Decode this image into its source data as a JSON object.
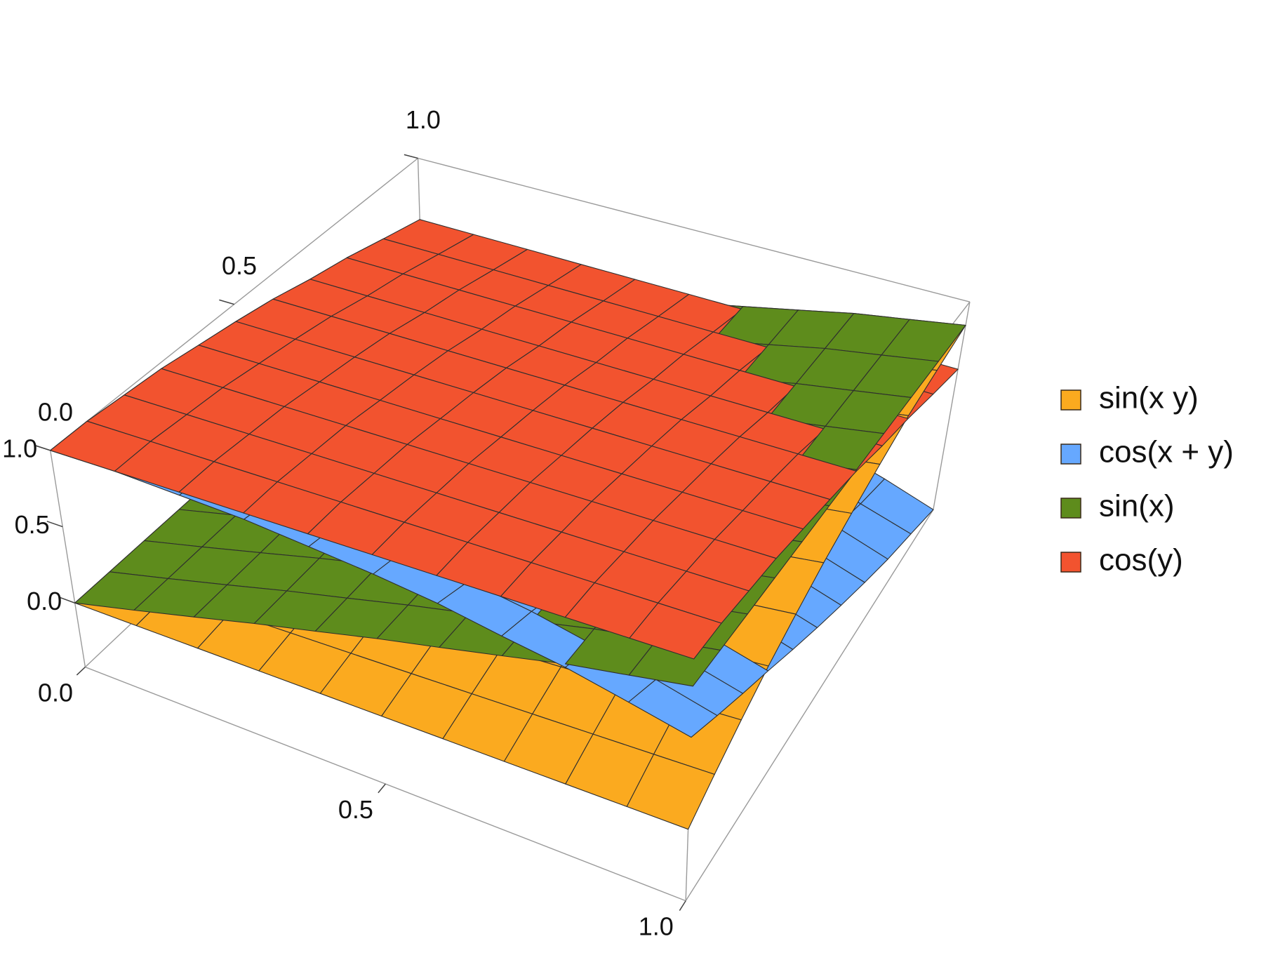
{
  "chart_data": {
    "type": "surface3d",
    "x": [
      0,
      0.1,
      0.2,
      0.3,
      0.4,
      0.5,
      0.6,
      0.7,
      0.8,
      0.9,
      1
    ],
    "y": [
      0,
      0.1,
      0.2,
      0.3,
      0.4,
      0.5,
      0.6,
      0.7,
      0.8,
      0.9,
      1
    ],
    "xlim": [
      0,
      1
    ],
    "ylim": [
      0,
      1
    ],
    "zlim": [
      -0.42,
      1
    ],
    "xticks": [
      {
        "value": 0,
        "label": "0.0"
      },
      {
        "value": 0.5,
        "label": "0.5"
      },
      {
        "value": 1,
        "label": "1.0"
      }
    ],
    "yticks": [
      {
        "value": 0,
        "label": "0.0"
      },
      {
        "value": 0.5,
        "label": "0.5"
      },
      {
        "value": 1,
        "label": "1.0"
      }
    ],
    "zticks": [
      {
        "value": 0,
        "label": "0.0"
      },
      {
        "value": 0.5,
        "label": "0.5"
      },
      {
        "value": 1,
        "label": "1.0"
      }
    ],
    "legend": "right",
    "mesh": true,
    "series": [
      {
        "name": "sin(x y)",
        "color": "#fbaa1f",
        "values": [
          [
            0,
            0,
            0,
            0,
            0,
            0,
            0,
            0,
            0,
            0,
            0
          ],
          [
            0,
            0.01,
            0.02,
            0.03,
            0.04,
            0.05,
            0.06,
            0.07,
            0.08,
            0.09,
            0.1
          ],
          [
            0,
            0.02,
            0.04,
            0.06,
            0.08,
            0.1,
            0.12,
            0.14,
            0.16,
            0.18,
            0.2
          ],
          [
            0,
            0.03,
            0.06,
            0.09,
            0.12,
            0.15,
            0.18,
            0.21,
            0.24,
            0.27,
            0.3
          ],
          [
            0,
            0.04,
            0.08,
            0.12,
            0.16,
            0.2,
            0.24,
            0.28,
            0.31,
            0.35,
            0.39
          ],
          [
            0,
            0.05,
            0.1,
            0.15,
            0.2,
            0.25,
            0.3,
            0.34,
            0.39,
            0.43,
            0.48
          ],
          [
            0,
            0.06,
            0.12,
            0.18,
            0.24,
            0.3,
            0.35,
            0.41,
            0.46,
            0.51,
            0.56
          ],
          [
            0,
            0.07,
            0.14,
            0.21,
            0.28,
            0.34,
            0.41,
            0.47,
            0.53,
            0.59,
            0.64
          ],
          [
            0,
            0.08,
            0.16,
            0.24,
            0.31,
            0.39,
            0.46,
            0.53,
            0.6,
            0.66,
            0.72
          ],
          [
            0,
            0.09,
            0.18,
            0.27,
            0.35,
            0.43,
            0.51,
            0.59,
            0.66,
            0.72,
            0.78
          ],
          [
            0,
            0.1,
            0.2,
            0.3,
            0.39,
            0.48,
            0.56,
            0.64,
            0.72,
            0.78,
            0.84
          ]
        ]
      },
      {
        "name": "cos(x + y)",
        "color": "#66a8ff",
        "values": [
          [
            1,
            1,
            0.98,
            0.96,
            0.92,
            0.88,
            0.83,
            0.76,
            0.7,
            0.62,
            0.54
          ],
          [
            1,
            0.98,
            0.96,
            0.92,
            0.88,
            0.83,
            0.76,
            0.7,
            0.62,
            0.54,
            0.45
          ],
          [
            0.98,
            0.96,
            0.92,
            0.88,
            0.83,
            0.76,
            0.7,
            0.62,
            0.54,
            0.45,
            0.36
          ],
          [
            0.96,
            0.92,
            0.88,
            0.83,
            0.76,
            0.7,
            0.62,
            0.54,
            0.45,
            0.36,
            0.27
          ],
          [
            0.92,
            0.88,
            0.83,
            0.76,
            0.7,
            0.62,
            0.54,
            0.45,
            0.36,
            0.27,
            0.17
          ],
          [
            0.88,
            0.83,
            0.76,
            0.7,
            0.62,
            0.54,
            0.45,
            0.36,
            0.27,
            0.17,
            0.07
          ],
          [
            0.83,
            0.76,
            0.7,
            0.62,
            0.54,
            0.45,
            0.36,
            0.27,
            0.17,
            0.07,
            -0.03
          ],
          [
            0.76,
            0.7,
            0.62,
            0.54,
            0.45,
            0.36,
            0.27,
            0.17,
            0.07,
            -0.03,
            -0.13
          ],
          [
            0.7,
            0.62,
            0.54,
            0.45,
            0.36,
            0.27,
            0.17,
            0.07,
            -0.03,
            -0.13,
            -0.23
          ],
          [
            0.62,
            0.54,
            0.45,
            0.36,
            0.27,
            0.17,
            0.07,
            -0.03,
            -0.13,
            -0.23,
            -0.32
          ],
          [
            0.54,
            0.45,
            0.36,
            0.27,
            0.17,
            0.07,
            -0.03,
            -0.13,
            -0.23,
            -0.32,
            -0.42
          ]
        ]
      },
      {
        "name": "sin(x)",
        "color": "#5e8c1c",
        "values": [
          [
            0,
            0.1,
            0.2,
            0.3,
            0.39,
            0.48,
            0.56,
            0.64,
            0.72,
            0.78,
            0.84
          ],
          [
            0,
            0.1,
            0.2,
            0.3,
            0.39,
            0.48,
            0.56,
            0.64,
            0.72,
            0.78,
            0.84
          ],
          [
            0,
            0.1,
            0.2,
            0.3,
            0.39,
            0.48,
            0.56,
            0.64,
            0.72,
            0.78,
            0.84
          ],
          [
            0,
            0.1,
            0.2,
            0.3,
            0.39,
            0.48,
            0.56,
            0.64,
            0.72,
            0.78,
            0.84
          ],
          [
            0,
            0.1,
            0.2,
            0.3,
            0.39,
            0.48,
            0.56,
            0.64,
            0.72,
            0.78,
            0.84
          ],
          [
            0,
            0.1,
            0.2,
            0.3,
            0.39,
            0.48,
            0.56,
            0.64,
            0.72,
            0.78,
            0.84
          ],
          [
            0,
            0.1,
            0.2,
            0.3,
            0.39,
            0.48,
            0.56,
            0.64,
            0.72,
            0.78,
            0.84
          ],
          [
            0,
            0.1,
            0.2,
            0.3,
            0.39,
            0.48,
            0.56,
            0.64,
            0.72,
            0.78,
            0.84
          ],
          [
            0,
            0.1,
            0.2,
            0.3,
            0.39,
            0.48,
            0.56,
            0.64,
            0.72,
            0.78,
            0.84
          ],
          [
            0,
            0.1,
            0.2,
            0.3,
            0.39,
            0.48,
            0.56,
            0.64,
            0.72,
            0.78,
            0.84
          ],
          [
            0,
            0.1,
            0.2,
            0.3,
            0.39,
            0.48,
            0.56,
            0.64,
            0.72,
            0.78,
            0.84
          ]
        ]
      },
      {
        "name": "cos(y)",
        "color": "#f2532f",
        "values": [
          [
            1,
            1,
            1,
            1,
            1,
            1,
            1,
            1,
            1,
            1,
            1
          ],
          [
            1,
            1,
            1,
            1,
            1,
            1,
            1,
            1,
            1,
            1,
            1
          ],
          [
            0.98,
            0.98,
            0.98,
            0.98,
            0.98,
            0.98,
            0.98,
            0.98,
            0.98,
            0.98,
            0.98
          ],
          [
            0.96,
            0.96,
            0.96,
            0.96,
            0.96,
            0.96,
            0.96,
            0.96,
            0.96,
            0.96,
            0.96
          ],
          [
            0.92,
            0.92,
            0.92,
            0.92,
            0.92,
            0.92,
            0.92,
            0.92,
            0.92,
            0.92,
            0.92
          ],
          [
            0.88,
            0.88,
            0.88,
            0.88,
            0.88,
            0.88,
            0.88,
            0.88,
            0.88,
            0.88,
            0.88
          ],
          [
            0.83,
            0.83,
            0.83,
            0.83,
            0.83,
            0.83,
            0.83,
            0.83,
            0.83,
            0.83,
            0.83
          ],
          [
            0.76,
            0.76,
            0.76,
            0.76,
            0.76,
            0.76,
            0.76,
            0.76,
            0.76,
            0.76,
            0.76
          ],
          [
            0.7,
            0.7,
            0.7,
            0.7,
            0.7,
            0.7,
            0.7,
            0.7,
            0.7,
            0.7,
            0.7
          ],
          [
            0.62,
            0.62,
            0.62,
            0.62,
            0.62,
            0.62,
            0.62,
            0.62,
            0.62,
            0.62,
            0.62
          ],
          [
            0.54,
            0.54,
            0.54,
            0.54,
            0.54,
            0.54,
            0.54,
            0.54,
            0.54,
            0.54,
            0.54
          ]
        ]
      }
    ]
  }
}
